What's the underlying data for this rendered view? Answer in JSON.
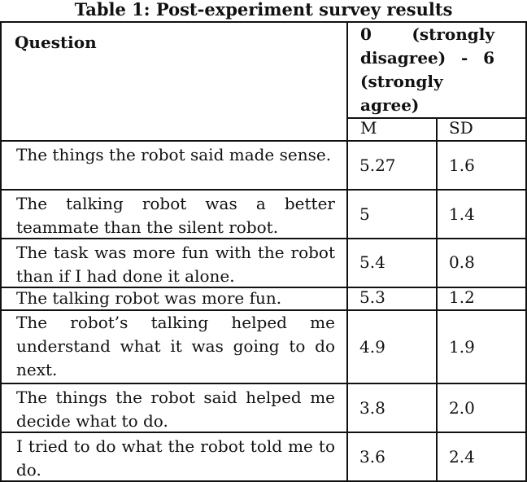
{
  "caption": "Table 1: Post-experiment survey results",
  "header": {
    "question": "Question",
    "scale": "0 (strongly disagree) - 6 (strongly agree)",
    "mean": "M",
    "sd": "SD"
  },
  "rows": [
    {
      "question": "The things the robot said made sense.",
      "mean": "5.27",
      "sd": "1.6"
    },
    {
      "question": "The talking robot was a better teammate than the silent robot.",
      "mean": "5",
      "sd": "1.4"
    },
    {
      "question": "The task was more fun with the robot than if I had done it alone.",
      "mean": "5.4",
      "sd": "0.8"
    },
    {
      "question": "The talking robot was more fun.",
      "mean": "5.3",
      "sd": "1.2"
    },
    {
      "question": "The robot’s talking helped me understand what it was going to do next.",
      "mean": "4.9",
      "sd": "1.9"
    },
    {
      "question": "The things the robot said helped me decide what to do.",
      "mean": "3.8",
      "sd": "2.0"
    },
    {
      "question": "I tried to do what the robot told me to do.",
      "mean": "3.6",
      "sd": "2.4"
    }
  ]
}
